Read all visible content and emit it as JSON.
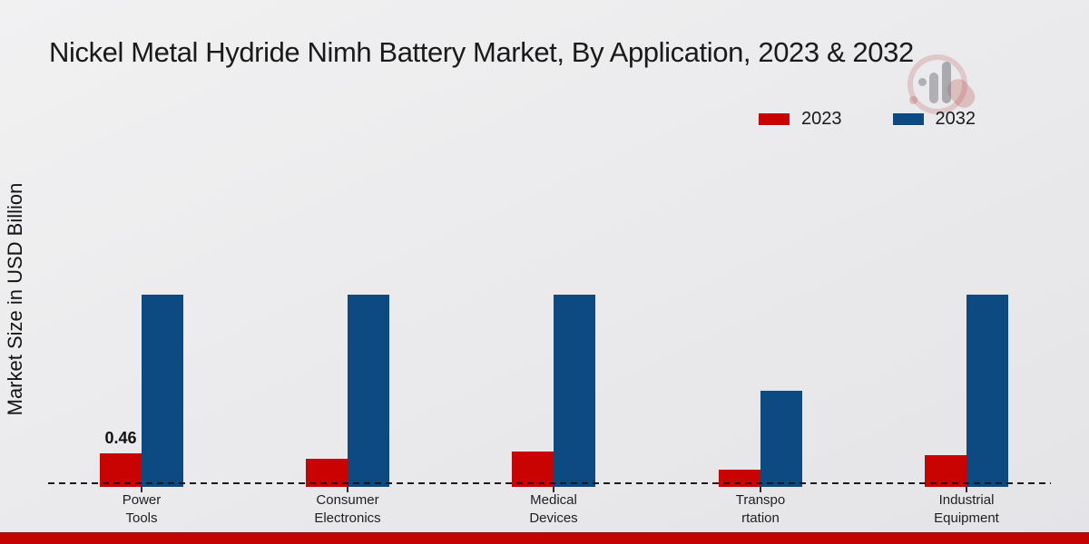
{
  "header": {
    "title": "Nickel Metal Hydride Nimh Battery Market, By Application, 2023 & 2032"
  },
  "colors": {
    "series_2023_red": "#c90202",
    "series_2032_blue": "#0d4a82",
    "footer_strip_red": "#c40303",
    "axis_line": "#1a1a1a"
  },
  "watermark": {
    "name": "market-research-logo-watermark"
  },
  "chart_data": {
    "type": "bar",
    "title": "Nickel Metal Hydride Nimh Battery Market, By Application, 2023 & 2032",
    "xlabel": "",
    "ylabel": "Market Size in USD Billion",
    "categories": [
      "Power Tools",
      "Consumer Electronics",
      "Medical Devices",
      "Transportation",
      "Industrial Equipment"
    ],
    "category_label_lines": [
      [
        "Power",
        "Tools"
      ],
      [
        "Consumer",
        "Electronics"
      ],
      [
        "Medical",
        "Devices"
      ],
      [
        "Transpo",
        "rtation"
      ],
      [
        "Industrial",
        "Equipment"
      ]
    ],
    "series": [
      {
        "name": "2023",
        "color": "#c90202",
        "values": [
          0.46,
          0.38,
          0.49,
          0.22,
          0.43
        ],
        "point_labels": [
          "0.46",
          "",
          "",
          "",
          ""
        ]
      },
      {
        "name": "2032",
        "color": "#0d4a82",
        "values": [
          2.83,
          2.83,
          2.83,
          1.39,
          2.83
        ],
        "point_labels": [
          "",
          "",
          "",
          "",
          ""
        ]
      }
    ],
    "ylim": [
      0,
      3.1
    ],
    "grid": false,
    "y_tick_labels_visible": false,
    "legend_position": "top-right",
    "baseline_style": "dashed"
  }
}
